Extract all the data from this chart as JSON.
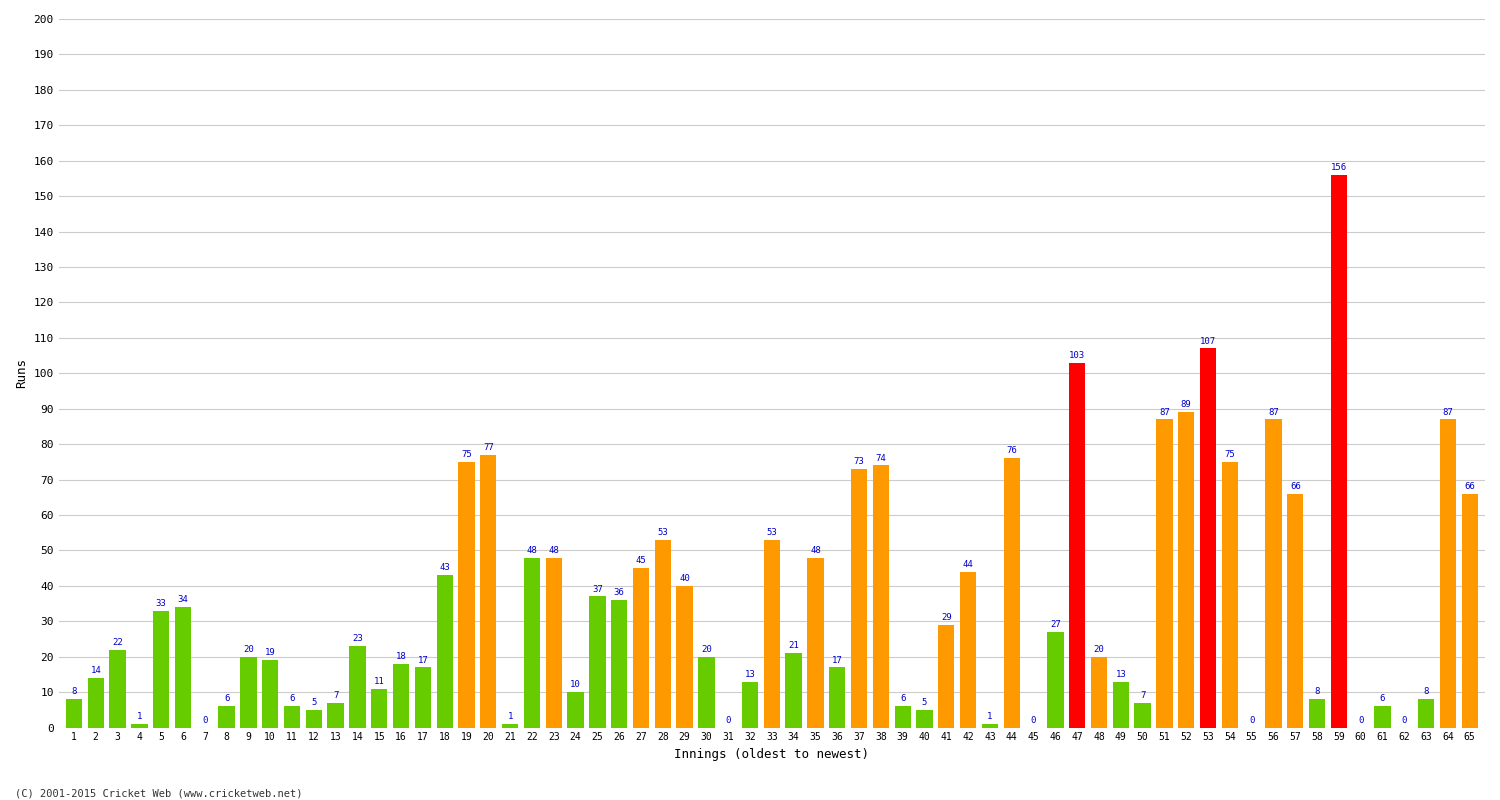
{
  "xlabel": "Innings (oldest to newest)",
  "ylabel": "Runs",
  "ylim": [
    0,
    200
  ],
  "yticks": [
    0,
    10,
    20,
    30,
    40,
    50,
    60,
    70,
    80,
    90,
    100,
    110,
    120,
    130,
    140,
    150,
    160,
    170,
    180,
    190,
    200
  ],
  "background_color": "#ffffff",
  "grid_color": "#cccccc",
  "innings_labels": [
    "1",
    "2",
    "3",
    "4",
    "5",
    "6",
    "7",
    "8",
    "9",
    "10",
    "11",
    "12",
    "13",
    "14",
    "15",
    "16",
    "17",
    "18",
    "19",
    "20",
    "21",
    "22",
    "23",
    "24",
    "25",
    "26",
    "27",
    "28",
    "29",
    "30",
    "31",
    "32",
    "33",
    "34",
    "35",
    "36",
    "37",
    "38",
    "39",
    "40",
    "41",
    "42",
    "43",
    "44",
    "45",
    "46",
    "47",
    "48",
    "49",
    "50",
    "51",
    "52",
    "53",
    "54",
    "55",
    "56",
    "57",
    "58",
    "59",
    "60",
    "61",
    "62",
    "63",
    "64",
    "65"
  ],
  "values": [
    8,
    14,
    22,
    1,
    33,
    34,
    0,
    6,
    20,
    19,
    6,
    5,
    7,
    23,
    11,
    18,
    17,
    43,
    75,
    77,
    1,
    48,
    48,
    10,
    37,
    36,
    45,
    53,
    40,
    20,
    0,
    13,
    53,
    21,
    48,
    17,
    73,
    74,
    6,
    5,
    29,
    44,
    1,
    76,
    0,
    27,
    103,
    20,
    13,
    7,
    87,
    89,
    107,
    75,
    0,
    87,
    66,
    8,
    156,
    0,
    6,
    0,
    8,
    87,
    66
  ],
  "colors": [
    "#66cc00",
    "#66cc00",
    "#66cc00",
    "#66cc00",
    "#66cc00",
    "#66cc00",
    "#66cc00",
    "#66cc00",
    "#66cc00",
    "#66cc00",
    "#66cc00",
    "#66cc00",
    "#66cc00",
    "#66cc00",
    "#66cc00",
    "#66cc00",
    "#66cc00",
    "#66cc00",
    "#ff9900",
    "#ff9900",
    "#66cc00",
    "#66cc00",
    "#ff9900",
    "#66cc00",
    "#66cc00",
    "#66cc00",
    "#ff9900",
    "#ff9900",
    "#ff9900",
    "#66cc00",
    "#66cc00",
    "#66cc00",
    "#ff9900",
    "#66cc00",
    "#ff9900",
    "#66cc00",
    "#ff9900",
    "#ff9900",
    "#66cc00",
    "#66cc00",
    "#ff9900",
    "#ff9900",
    "#66cc00",
    "#ff9900",
    "#66cc00",
    "#66cc00",
    "#ff0000",
    "#ff9900",
    "#66cc00",
    "#66cc00",
    "#ff9900",
    "#ff9900",
    "#ff0000",
    "#ff9900",
    "#66cc00",
    "#ff9900",
    "#ff9900",
    "#66cc00",
    "#ff0000",
    "#66cc00",
    "#66cc00",
    "#66cc00",
    "#66cc00",
    "#ff9900",
    "#ff9900"
  ],
  "label_color": "#0000cc",
  "label_fontsize": 6.5,
  "bar_width": 0.75,
  "footer": "(C) 2001-2015 Cricket Web (www.cricketweb.net)",
  "figsize": [
    15.0,
    8.0
  ],
  "dpi": 100
}
